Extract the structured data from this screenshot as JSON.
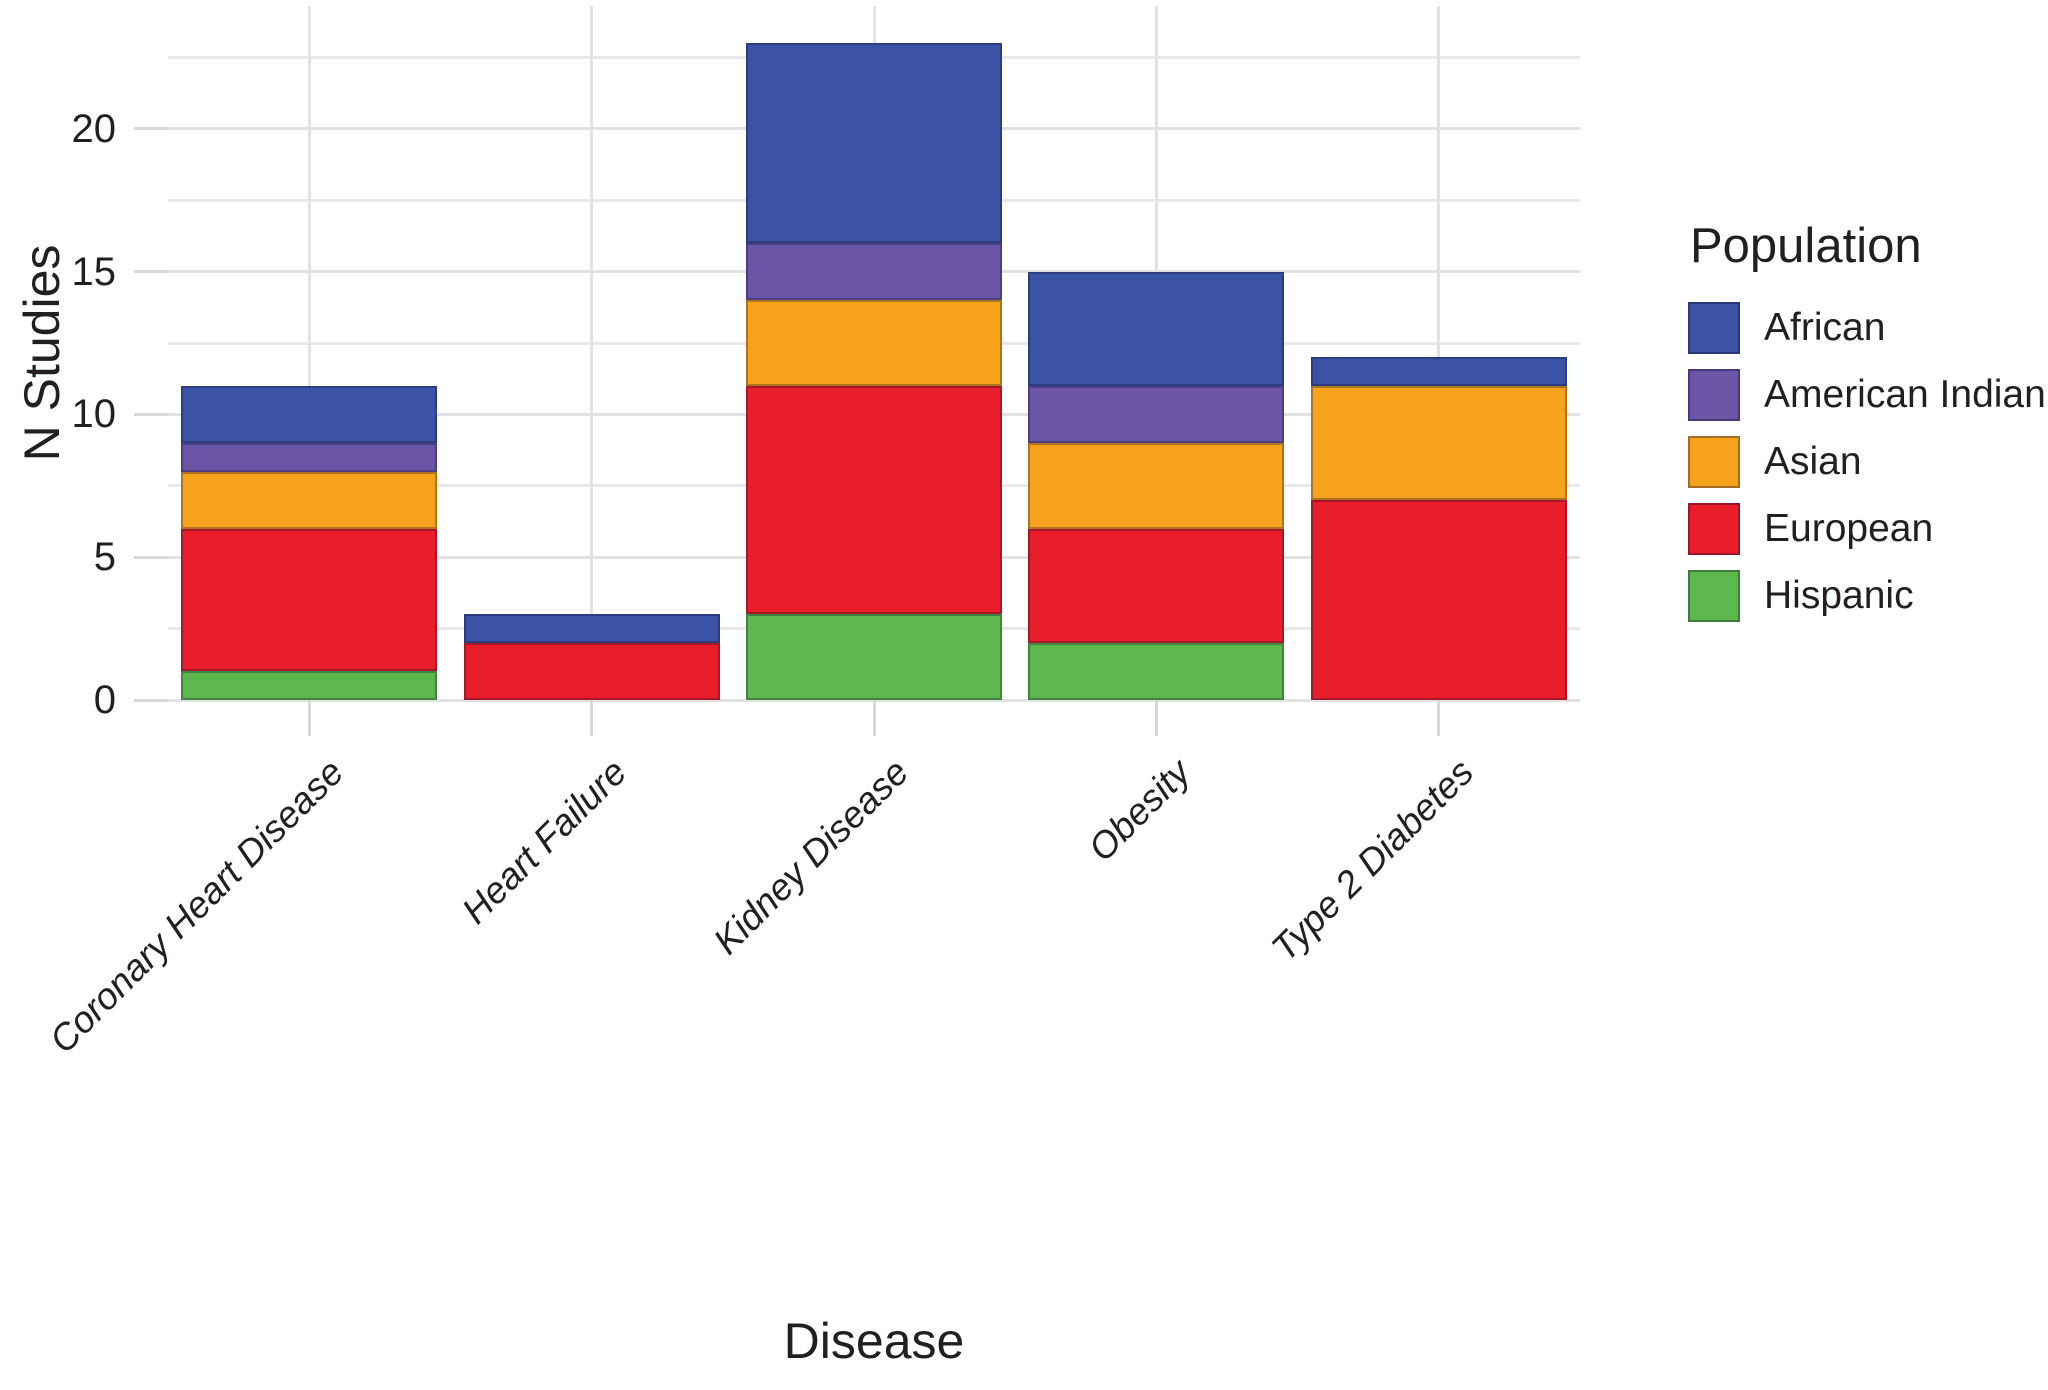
{
  "chart_data": {
    "type": "bar",
    "stacked": true,
    "orientation": "vertical",
    "title": "",
    "xlabel": "Disease",
    "ylabel": "N Studies",
    "categories": [
      "Coronary Heart Disease",
      "Heart Failure",
      "Kidney Disease",
      "Obesity",
      "Type 2 Diabetes"
    ],
    "series": [
      {
        "name": "African",
        "color": "#3a53a5",
        "values": [
          2,
          1,
          7,
          4,
          1
        ]
      },
      {
        "name": "American Indian",
        "color": "#6a55a6",
        "values": [
          1,
          0,
          2,
          2,
          0
        ]
      },
      {
        "name": "Asian",
        "color": "#f7a21d",
        "values": [
          2,
          0,
          3,
          3,
          4
        ]
      },
      {
        "name": "European",
        "color": "#ea1d2b",
        "values": [
          5,
          2,
          8,
          4,
          7
        ]
      },
      {
        "name": "Hispanic",
        "color": "#5cb84c",
        "values": [
          1,
          0,
          3,
          2,
          0
        ]
      }
    ],
    "stack_order_bottom_to_top": [
      "Hispanic",
      "European",
      "Asian",
      "American Indian",
      "African"
    ],
    "totals": [
      11,
      3,
      23,
      15,
      12
    ],
    "y_ticks": [
      0,
      5,
      10,
      15,
      20
    ],
    "y_minor_gridlines": [
      2.5,
      7.5,
      12.5,
      17.5,
      22.5
    ],
    "ylim": [
      0,
      24.3
    ],
    "grid": true,
    "panel_background": "#ffffff",
    "legend": {
      "title": "Population",
      "position": "right",
      "entries": [
        {
          "label": "African",
          "color": "#3a53a5"
        },
        {
          "label": "American Indian",
          "color": "#6a55a6"
        },
        {
          "label": "Asian",
          "color": "#f7a21d"
        },
        {
          "label": "European",
          "color": "#ea1d2b"
        },
        {
          "label": "Hispanic",
          "color": "#5cb84c"
        }
      ]
    }
  },
  "colors": {
    "grid_major": "#e2e2e2",
    "grid_minor": "#e9e9e9",
    "tick": "#d8d8d8",
    "text": "#231f20",
    "background": "#ffffff"
  }
}
